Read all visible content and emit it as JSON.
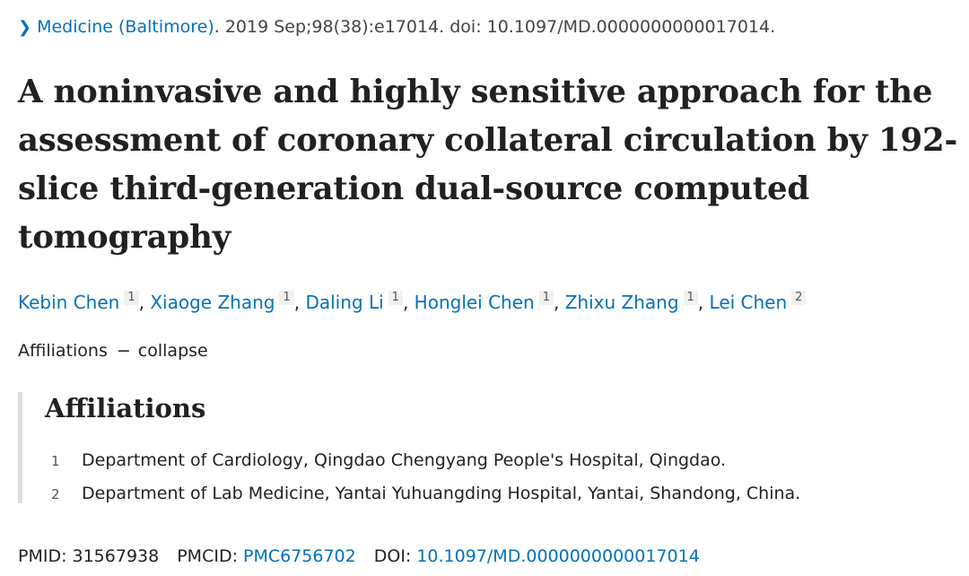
{
  "citation": {
    "journal": "Medicine (Baltimore)",
    "details": ". 2019 Sep;98(38):e17014. doi: 10.1097/MD.0000000000017014."
  },
  "title": "A noninvasive and highly sensitive approach for the assessment of coronary collateral circulation by 192-slice third-generation dual-source computed tomography",
  "authors": [
    {
      "name": "Kebin Chen",
      "aff": "1"
    },
    {
      "name": "Xiaoge Zhang",
      "aff": "1"
    },
    {
      "name": "Daling Li",
      "aff": "1"
    },
    {
      "name": "Honglei Chen",
      "aff": "1"
    },
    {
      "name": "Zhixu Zhang",
      "aff": "1"
    },
    {
      "name": "Lei Chen",
      "aff": "2"
    }
  ],
  "affiliations_toggle": {
    "label": "Affiliations",
    "dash": "−",
    "action": "collapse"
  },
  "affiliations": {
    "heading": "Affiliations",
    "items": [
      {
        "num": "1",
        "text": "Department of Cardiology, Qingdao Chengyang People's Hospital, Qingdao."
      },
      {
        "num": "2",
        "text": "Department of Lab Medicine, Yantai Yuhuangding Hospital, Yantai, Shandong, China."
      }
    ]
  },
  "identifiers": {
    "pmid_label": "PMID:",
    "pmid": "31567938",
    "pmcid_label": "PMCID:",
    "pmcid": "PMC6756702",
    "doi_label": "DOI:",
    "doi": "10.1097/MD.0000000000017014"
  },
  "colors": {
    "link": "#0071bc",
    "text": "#212121"
  }
}
